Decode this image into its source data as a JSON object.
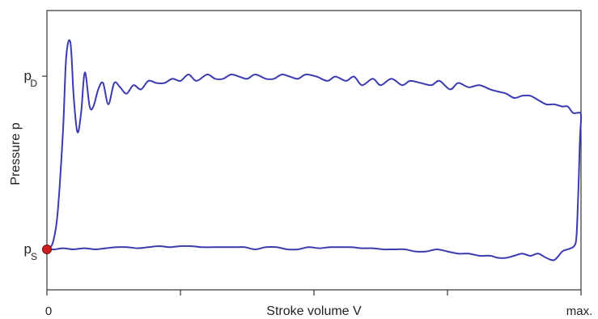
{
  "chart_data": {
    "type": "line",
    "xlabel": "Stroke volume V",
    "ylabel": "Pressure p",
    "x_tick_labels": {
      "start": "0",
      "end": "max."
    },
    "y_tick_labels": [
      {
        "main": "p",
        "sub": "D",
        "value": 0.812
      },
      {
        "main": "p",
        "sub": "S",
        "value": 0.0
      }
    ],
    "xlim": [
      0,
      1
    ],
    "ylim": [
      -0.19,
      1.12
    ],
    "x_minor_ticks": [
      0.25,
      0.5,
      0.75
    ],
    "grid": false,
    "legend": "none",
    "line_color": "#3b3bb0",
    "marker": {
      "x": 0.0,
      "y": 0.0,
      "color": "#cc1f1f"
    },
    "series": [
      {
        "values": [
          [
            0.0,
            0.0
          ],
          [
            0.005,
            0.005
          ],
          [
            0.012,
            0.04
          ],
          [
            0.02,
            0.17
          ],
          [
            0.03,
            0.55
          ],
          [
            0.036,
            0.9
          ],
          [
            0.044,
            0.97
          ],
          [
            0.05,
            0.72
          ],
          [
            0.057,
            0.55
          ],
          [
            0.064,
            0.64
          ],
          [
            0.071,
            0.83
          ],
          [
            0.08,
            0.67
          ],
          [
            0.087,
            0.67
          ],
          [
            0.096,
            0.75
          ],
          [
            0.105,
            0.78
          ],
          [
            0.115,
            0.68
          ],
          [
            0.126,
            0.78
          ],
          [
            0.137,
            0.76
          ],
          [
            0.149,
            0.73
          ],
          [
            0.162,
            0.77
          ],
          [
            0.176,
            0.75
          ],
          [
            0.19,
            0.79
          ],
          [
            0.205,
            0.78
          ],
          [
            0.22,
            0.78
          ],
          [
            0.235,
            0.8
          ],
          [
            0.25,
            0.79
          ],
          [
            0.265,
            0.82
          ],
          [
            0.28,
            0.79
          ],
          [
            0.3,
            0.82
          ],
          [
            0.315,
            0.8
          ],
          [
            0.33,
            0.8
          ],
          [
            0.345,
            0.82
          ],
          [
            0.36,
            0.81
          ],
          [
            0.375,
            0.8
          ],
          [
            0.39,
            0.82
          ],
          [
            0.41,
            0.8
          ],
          [
            0.425,
            0.8
          ],
          [
            0.44,
            0.82
          ],
          [
            0.455,
            0.81
          ],
          [
            0.47,
            0.8
          ],
          [
            0.485,
            0.82
          ],
          [
            0.505,
            0.81
          ],
          [
            0.525,
            0.79
          ],
          [
            0.54,
            0.81
          ],
          [
            0.56,
            0.79
          ],
          [
            0.575,
            0.81
          ],
          [
            0.59,
            0.77
          ],
          [
            0.61,
            0.8
          ],
          [
            0.625,
            0.77
          ],
          [
            0.645,
            0.8
          ],
          [
            0.665,
            0.77
          ],
          [
            0.68,
            0.79
          ],
          [
            0.7,
            0.78
          ],
          [
            0.72,
            0.77
          ],
          [
            0.735,
            0.79
          ],
          [
            0.755,
            0.75
          ],
          [
            0.77,
            0.78
          ],
          [
            0.79,
            0.76
          ],
          [
            0.81,
            0.77
          ],
          [
            0.83,
            0.75
          ],
          [
            0.845,
            0.74
          ],
          [
            0.86,
            0.73
          ],
          [
            0.875,
            0.71
          ],
          [
            0.89,
            0.72
          ],
          [
            0.905,
            0.72
          ],
          [
            0.92,
            0.7
          ],
          [
            0.935,
            0.68
          ],
          [
            0.95,
            0.68
          ],
          [
            0.965,
            0.67
          ],
          [
            0.975,
            0.67
          ],
          [
            0.985,
            0.64
          ],
          [
            0.993,
            0.64
          ],
          [
            1.0,
            0.63
          ],
          [
            0.998,
            0.52
          ],
          [
            0.996,
            0.35
          ],
          [
            0.994,
            0.2
          ],
          [
            0.992,
            0.08
          ],
          [
            0.99,
            0.03
          ],
          [
            0.985,
            0.01
          ],
          [
            0.975,
            0.0
          ],
          [
            0.965,
            -0.01
          ],
          [
            0.95,
            -0.05
          ],
          [
            0.935,
            -0.04
          ],
          [
            0.92,
            -0.02
          ],
          [
            0.905,
            -0.03
          ],
          [
            0.89,
            -0.02
          ],
          [
            0.875,
            -0.03
          ],
          [
            0.86,
            -0.04
          ],
          [
            0.845,
            -0.04
          ],
          [
            0.83,
            -0.03
          ],
          [
            0.81,
            -0.03
          ],
          [
            0.79,
            -0.02
          ],
          [
            0.77,
            -0.02
          ],
          [
            0.75,
            -0.01
          ],
          [
            0.73,
            0.0
          ],
          [
            0.71,
            -0.01
          ],
          [
            0.69,
            -0.01
          ],
          [
            0.67,
            0.0
          ],
          [
            0.65,
            0.0
          ],
          [
            0.63,
            0.0
          ],
          [
            0.61,
            0.005
          ],
          [
            0.59,
            0.005
          ],
          [
            0.57,
            0.01
          ],
          [
            0.55,
            0.01
          ],
          [
            0.53,
            0.01
          ],
          [
            0.51,
            0.005
          ],
          [
            0.49,
            0.01
          ],
          [
            0.47,
            0.0
          ],
          [
            0.45,
            0.0
          ],
          [
            0.43,
            0.01
          ],
          [
            0.41,
            0.01
          ],
          [
            0.39,
            0.0
          ],
          [
            0.37,
            0.01
          ],
          [
            0.35,
            0.01
          ],
          [
            0.33,
            0.01
          ],
          [
            0.31,
            0.01
          ],
          [
            0.29,
            0.01
          ],
          [
            0.27,
            0.015
          ],
          [
            0.25,
            0.015
          ],
          [
            0.23,
            0.01
          ],
          [
            0.21,
            0.015
          ],
          [
            0.19,
            0.01
          ],
          [
            0.17,
            0.005
          ],
          [
            0.15,
            0.01
          ],
          [
            0.13,
            0.01
          ],
          [
            0.11,
            0.005
          ],
          [
            0.09,
            0.0
          ],
          [
            0.07,
            0.005
          ],
          [
            0.05,
            0.0
          ],
          [
            0.03,
            0.005
          ],
          [
            0.015,
            0.0
          ],
          [
            0.005,
            0.0
          ],
          [
            0.0,
            0.0
          ]
        ]
      }
    ]
  }
}
